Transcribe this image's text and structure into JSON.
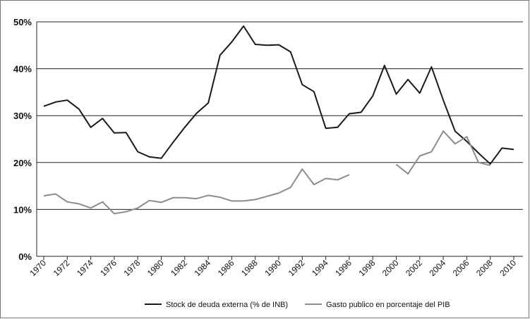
{
  "chart_data": {
    "type": "line",
    "x": [
      1970,
      1971,
      1972,
      1973,
      1974,
      1975,
      1976,
      1977,
      1978,
      1979,
      1980,
      1981,
      1982,
      1983,
      1984,
      1985,
      1986,
      1987,
      1988,
      1989,
      1990,
      1991,
      1992,
      1993,
      1994,
      1995,
      1996,
      1997,
      1998,
      1999,
      2000,
      2001,
      2002,
      2003,
      2004,
      2005,
      2006,
      2007,
      2008,
      2009,
      2010
    ],
    "xlim": [
      1970,
      2010
    ],
    "xticks": [
      1970,
      1972,
      1974,
      1976,
      1978,
      1980,
      1982,
      1984,
      1986,
      1988,
      1990,
      1992,
      1994,
      1996,
      1998,
      2000,
      2002,
      2004,
      2006,
      2008,
      2010
    ],
    "ylim": [
      0,
      50
    ],
    "yticks": [
      {
        "value": 0,
        "label": "0%"
      },
      {
        "value": 10,
        "label": "10%"
      },
      {
        "value": 20,
        "label": "20%"
      },
      {
        "value": 30,
        "label": "30%"
      },
      {
        "value": 40,
        "label": "40%"
      },
      {
        "value": 50,
        "label": "50%"
      }
    ],
    "grid": true,
    "legend": "bottom",
    "series": [
      {
        "name": "Stock de deuda externa (% de INB)",
        "color": "#1a1a1a",
        "values": [
          32,
          32.9,
          33.3,
          31.4,
          27.5,
          29.4,
          26.3,
          26.4,
          22.3,
          21.2,
          20.9,
          24.3,
          27.5,
          30.5,
          32.7,
          42.9,
          45.7,
          49.1,
          45.2,
          45,
          45.1,
          43.6,
          36.6,
          35.1,
          27.3,
          27.5,
          30.4,
          30.7,
          34.2,
          40.7,
          34.6,
          37.7,
          34.8,
          40.4,
          33.3,
          26.7,
          24.5,
          22,
          19.7,
          23.1,
          22.8
        ]
      },
      {
        "name": "Gasto publico en porcentaje del PIB",
        "color": "#8c8c8c",
        "values": [
          12.9,
          13.3,
          11.6,
          11.2,
          10.3,
          11.6,
          9.1,
          9.5,
          10.3,
          11.9,
          11.5,
          12.5,
          12.5,
          12.3,
          13,
          12.6,
          11.8,
          11.8,
          12.1,
          12.8,
          13.5,
          14.7,
          18.6,
          15.3,
          16.6,
          16.3,
          17.4,
          null,
          null,
          null,
          19.6,
          17.6,
          21.4,
          22.3,
          26.7,
          24,
          25.5,
          20,
          19.4,
          null,
          null
        ]
      }
    ]
  }
}
